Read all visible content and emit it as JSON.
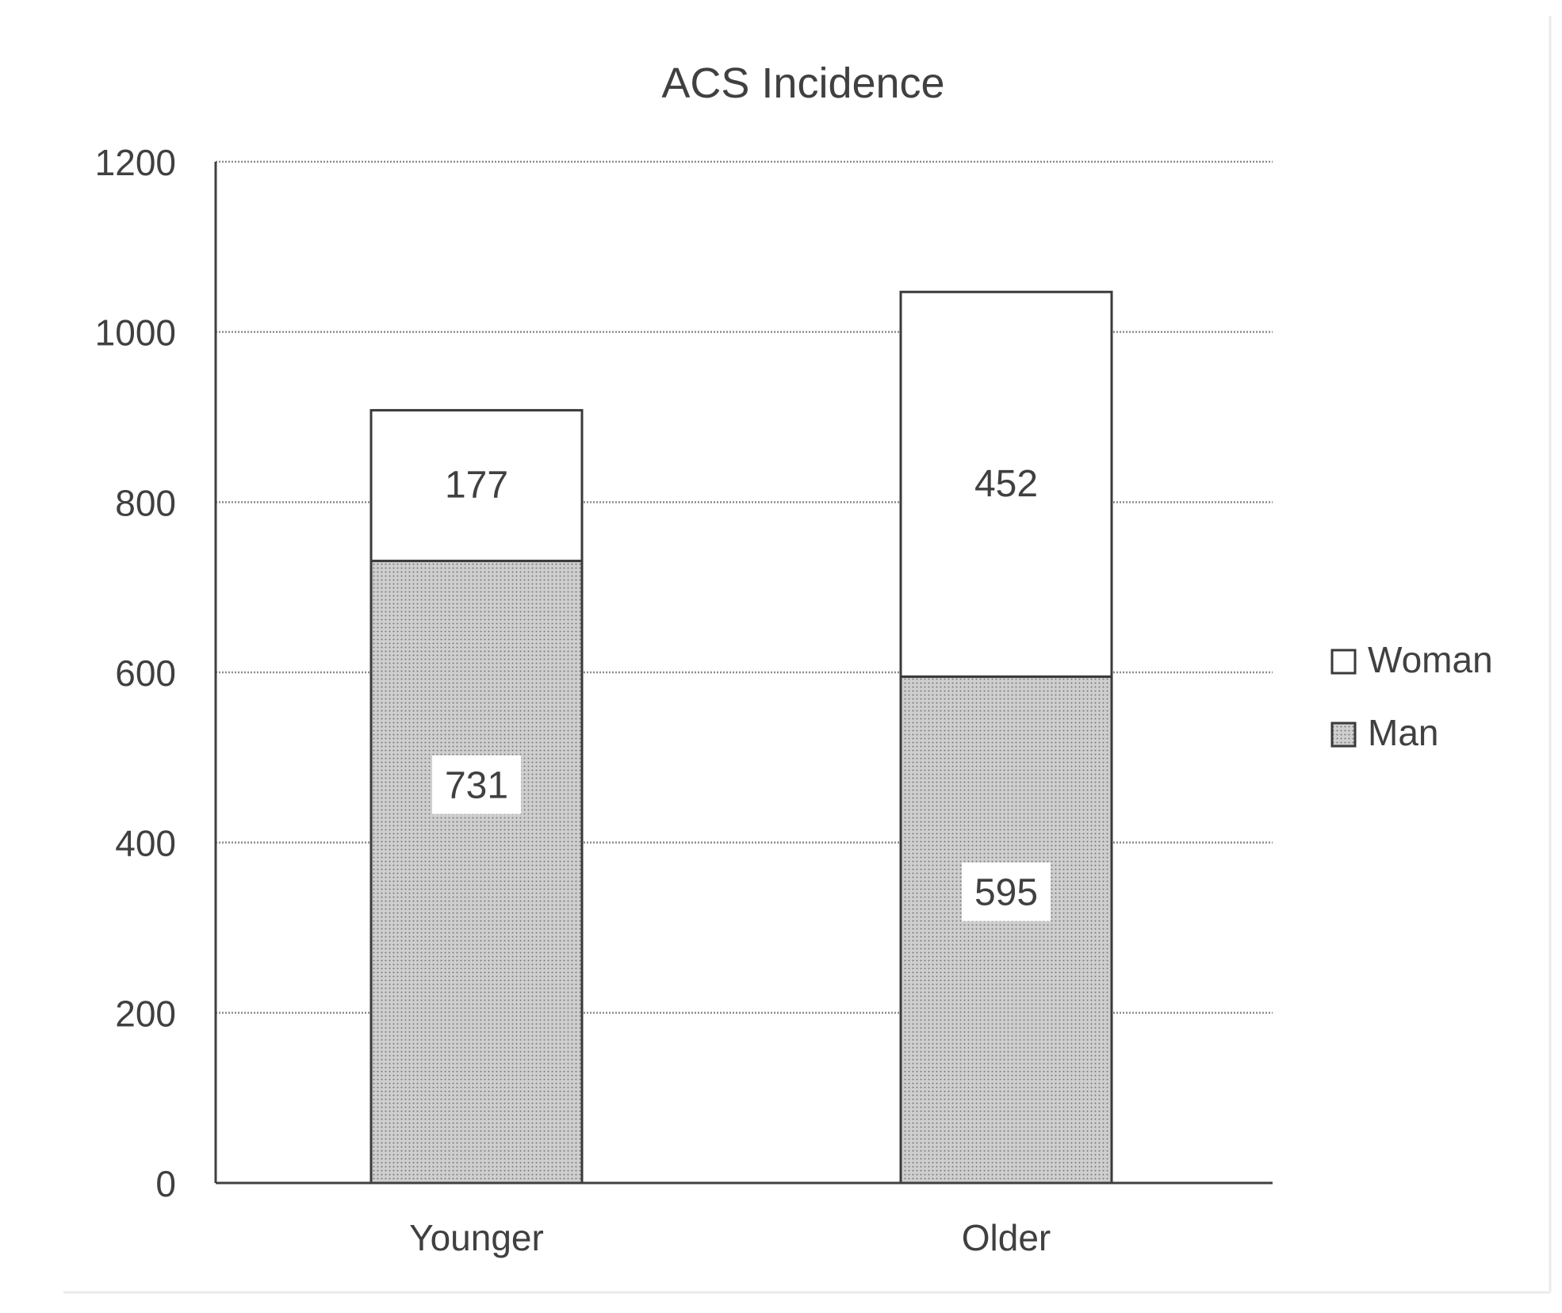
{
  "chart_data": {
    "type": "bar",
    "stacked": true,
    "title": "ACS Incidence",
    "xlabel": "",
    "ylabel": "",
    "categories": [
      "Younger",
      "Older"
    ],
    "series": [
      {
        "name": "Man",
        "values": [
          731,
          595
        ],
        "fill": "dotted-gray"
      },
      {
        "name": "Woman",
        "values": [
          177,
          452
        ],
        "fill": "white"
      }
    ],
    "ylim": [
      0,
      1200
    ],
    "yticks": [
      0,
      200,
      400,
      600,
      800,
      1000,
      1200
    ],
    "grid": true,
    "legend": "right",
    "data_labels": true
  },
  "colors": {
    "text": "#404040",
    "axis": "#404040",
    "bar_border": "#3a3a3a",
    "grid": "#8c8c8c",
    "man_fill_base": "#cfcfcf",
    "man_fill_dot": "#7a7a7a",
    "woman_fill": "#ffffff"
  }
}
